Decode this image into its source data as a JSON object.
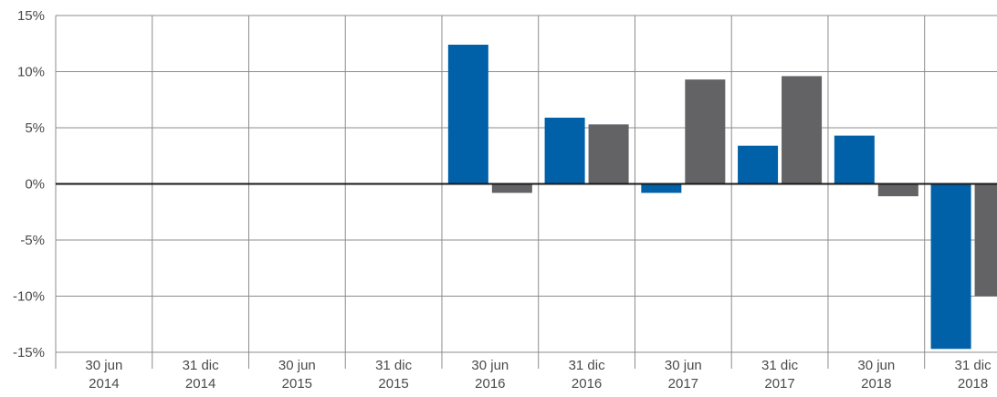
{
  "chart_data": {
    "type": "bar",
    "categories": [
      "30 jun\n2014",
      "31 dic\n2014",
      "30 jun\n2015",
      "31 dic\n2015",
      "30 jun\n2016",
      "31 dic\n2016",
      "30 jun\n2017",
      "31 dic\n2017",
      "30 jun\n2018",
      "31 dic\n2018"
    ],
    "series": [
      {
        "values": [
          null,
          null,
          null,
          null,
          12.4,
          5.9,
          -0.8,
          3.4,
          4.3,
          -14.7
        ],
        "color": "#0060a8"
      },
      {
        "values": [
          null,
          null,
          null,
          null,
          -0.8,
          5.3,
          9.3,
          9.6,
          -1.1,
          -10.0
        ],
        "color": "#636366"
      }
    ],
    "ylim": [
      -15,
      15
    ],
    "yticks": [
      15,
      10,
      5,
      0,
      -5,
      -10,
      -15
    ],
    "ytick_labels": [
      "15%",
      "10%",
      "5%",
      "0%",
      "-5%",
      "-10%",
      "-15%"
    ],
    "grid": true,
    "title": "",
    "xlabel": "",
    "ylabel": ""
  }
}
